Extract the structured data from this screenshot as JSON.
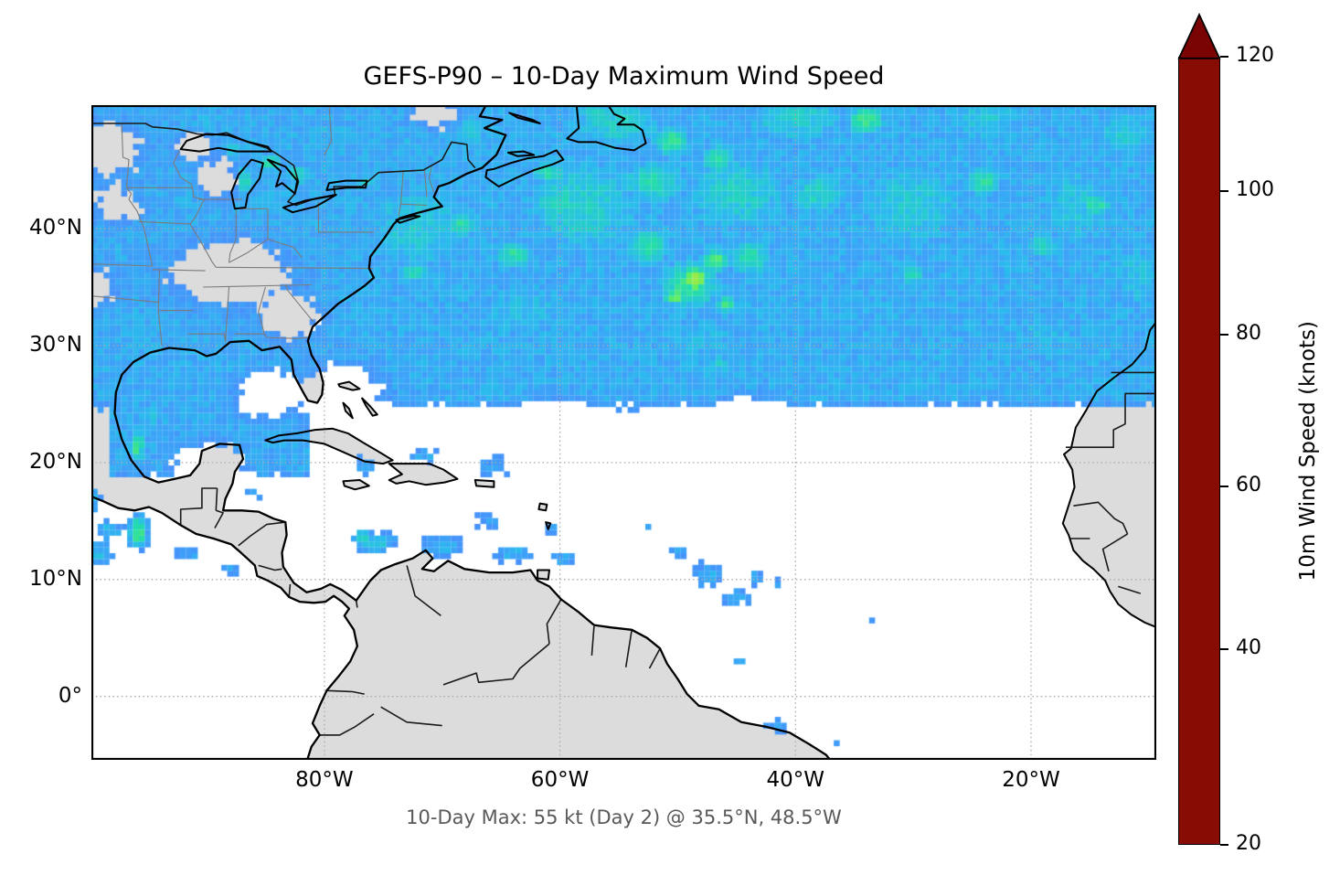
{
  "chart_data": {
    "type": "heatmap",
    "title": "GEFS-P90 – 10-Day Maximum Wind Speed",
    "annotation": "10-Day Max: 55 kt (Day 2) @ 35.5°N, 48.5°W",
    "units": "knots",
    "value_range": [
      20,
      120
    ],
    "max_point": {
      "value_kt": 55,
      "day": 2,
      "lat_deg_n": 35.5,
      "lon_deg_w": 48.5
    },
    "x_axis": {
      "ticks": [
        {
          "label": "80°W",
          "lon": -80
        },
        {
          "label": "60°W",
          "lon": -60
        },
        {
          "label": "40°W",
          "lon": -40
        },
        {
          "label": "20°W",
          "lon": -20
        }
      ],
      "range_lon": [
        -99.78,
        -9.37
      ]
    },
    "y_axis": {
      "ticks": [
        {
          "label": "40°N",
          "lat": 40
        },
        {
          "label": "30°N",
          "lat": 30
        },
        {
          "label": "20°N",
          "lat": 20
        },
        {
          "label": "10°N",
          "lat": 10
        },
        {
          "label": "0°",
          "lat": 0
        }
      ],
      "range_lat": [
        -5.35,
        50.56
      ]
    },
    "grid": "dotted",
    "colorbar": {
      "label": "10m Wind Speed (knots)",
      "extend": "max",
      "extend_color": "#7a0403",
      "ticks": [
        {
          "label": "120",
          "f": 0.0
        },
        {
          "label": "100",
          "f": 0.171
        },
        {
          "label": "80",
          "f": 0.353
        },
        {
          "label": "60",
          "f": 0.545
        },
        {
          "label": "40",
          "f": 0.752
        },
        {
          "label": "20",
          "f": 1.0
        }
      ]
    },
    "colormap": [
      {
        "v": 20,
        "c": "#4691fb",
        "f": 1.0
      },
      {
        "v": 25,
        "c": "#3ba5f7",
        "f": 0.938
      },
      {
        "v": 30,
        "c": "#29bdec",
        "f": 0.876
      },
      {
        "v": 40,
        "c": "#23dcab",
        "f": 0.752
      },
      {
        "v": 50,
        "c": "#63ee5d",
        "f": 0.648
      },
      {
        "v": 60,
        "c": "#c8e43a",
        "f": 0.545
      },
      {
        "v": 70,
        "c": "#f2d438",
        "f": 0.449
      },
      {
        "v": 80,
        "c": "#fa952c",
        "f": 0.353
      },
      {
        "v": 90,
        "c": "#ea5c14",
        "f": 0.262
      },
      {
        "v": 100,
        "c": "#c62d04",
        "f": 0.171
      },
      {
        "v": 110,
        "c": "#a41204",
        "f": 0.087
      },
      {
        "v": 120,
        "c": "#870c04",
        "f": 0.0
      }
    ],
    "field_model": {
      "comment": "approximate 10-day max wind field, knots; blobs=[lon,lat,rx,ry,value] gaussian, holes=[lon,lat,rx,ry,strength]; values below 20 kt are masked white",
      "base": {
        "atlantic": {
          "lat0": 23.2,
          "ramp": 2.2,
          "v": 26.5
        },
        "gulf": {
          "lonMin": -98.5,
          "lonMax": -81,
          "lat0": 17.4,
          "ramp": 1.8,
          "v": 26
        }
      },
      "blobs": [
        [
          -72,
          40,
          9,
          7,
          33
        ],
        [
          -58,
          42,
          9,
          7,
          35
        ],
        [
          -45,
          43,
          8,
          6,
          35
        ],
        [
          -30,
          42,
          9,
          7,
          33
        ],
        [
          -16,
          42,
          7,
          7,
          32
        ],
        [
          -63,
          33,
          8,
          5.5,
          30
        ],
        [
          -48,
          30.5,
          8,
          5.5,
          29
        ],
        [
          -33,
          30.5,
          9,
          5.5,
          28
        ],
        [
          -19,
          31,
          8,
          5.5,
          29
        ],
        [
          -11,
          36,
          5,
          6,
          31
        ],
        [
          -55,
          49,
          7,
          4,
          35
        ],
        [
          -40,
          49.5,
          8,
          4,
          34
        ],
        [
          -24,
          49.5,
          8,
          4,
          32
        ],
        [
          -68,
          48.5,
          5,
          3.5,
          31
        ],
        [
          -12,
          48,
          5,
          4,
          33
        ],
        [
          -57,
          50,
          3,
          2,
          34
        ],
        [
          -70,
          26.5,
          5,
          3,
          26
        ],
        [
          -55,
          26,
          6,
          3,
          25
        ],
        [
          -40,
          26,
          7,
          3,
          25
        ],
        [
          -25,
          26.5,
          7,
          3,
          26
        ],
        [
          -14,
          26.5,
          4,
          2.5,
          26
        ],
        [
          -48.5,
          35.7,
          1.4,
          1.7,
          56
        ],
        [
          -50.2,
          34.2,
          1.4,
          1.1,
          49
        ],
        [
          -46.8,
          37.3,
          1.8,
          1.4,
          47
        ],
        [
          -45.8,
          33.5,
          1.3,
          1.1,
          44
        ],
        [
          -49,
          35.2,
          4,
          3.2,
          42
        ],
        [
          -44,
          37.5,
          3,
          2.5,
          40
        ],
        [
          -52.5,
          38.5,
          3,
          2.5,
          40
        ],
        [
          -52,
          44,
          4.5,
          3,
          38
        ],
        [
          -60,
          42.5,
          4,
          2.8,
          37
        ],
        [
          -38,
          43,
          4,
          3,
          37
        ],
        [
          -34,
          49.3,
          2.3,
          1.9,
          44
        ],
        [
          -24,
          44,
          2.5,
          2,
          40
        ],
        [
          -14.5,
          42,
          2.2,
          1.8,
          40
        ],
        [
          -19,
          38.5,
          2,
          1.6,
          38
        ],
        [
          -30,
          36,
          1.8,
          1.4,
          37
        ],
        [
          -46.5,
          28.5,
          1.4,
          2.2,
          33
        ],
        [
          -64,
          37.8,
          2.6,
          2,
          40
        ],
        [
          -68.5,
          40.3,
          2.4,
          1.8,
          40
        ],
        [
          -72.5,
          36.3,
          2.2,
          1.3,
          38
        ],
        [
          -61,
          44.8,
          2.4,
          1.6,
          40
        ],
        [
          -50.5,
          47.5,
          2.4,
          2,
          42
        ],
        [
          -46.5,
          46,
          2.4,
          2,
          40
        ],
        [
          -86.8,
          44.2,
          0.9,
          1.7,
          43
        ],
        [
          -84.6,
          45.7,
          1.6,
          1,
          41
        ],
        [
          -82.3,
          44.6,
          1.6,
          1.2,
          39
        ],
        [
          -87.8,
          46.8,
          1.8,
          0.9,
          38
        ],
        [
          -76.3,
          43.9,
          1.4,
          0.8,
          36
        ],
        [
          -79.5,
          48.5,
          3,
          2,
          29
        ],
        [
          -73,
          47.5,
          2.5,
          2,
          28
        ],
        [
          -90,
          49,
          3,
          2,
          30
        ],
        [
          -97,
          31.5,
          2,
          2,
          26
        ],
        [
          -93.5,
          44.5,
          2.5,
          2,
          28
        ],
        [
          -92,
          25.5,
          4,
          3,
          27
        ],
        [
          -95.9,
          21.4,
          0.9,
          2.1,
          44
        ],
        [
          -94.9,
          24,
          1.8,
          2,
          32
        ],
        [
          -86.5,
          23.5,
          2.5,
          2,
          25
        ],
        [
          -84.5,
          22,
          2,
          1.3,
          25
        ],
        [
          -75.6,
          13.2,
          2.6,
          1.3,
          33
        ],
        [
          -76.8,
          13.6,
          1,
          0.8,
          38
        ],
        [
          -70,
          12.8,
          3,
          1.3,
          30
        ],
        [
          -64,
          12.3,
          3,
          1.3,
          28
        ],
        [
          -59.5,
          11.8,
          2,
          1.2,
          26
        ],
        [
          -66,
          15,
          2.5,
          1.5,
          23
        ],
        [
          -76.5,
          19.8,
          2,
          1.3,
          26
        ],
        [
          -71.5,
          20.6,
          2,
          1.2,
          27
        ],
        [
          -65.5,
          19.6,
          2.5,
          1.4,
          27
        ],
        [
          -60.5,
          14.5,
          1.4,
          1.2,
          24
        ],
        [
          -85.8,
          17.5,
          1.7,
          1.2,
          23
        ],
        [
          -49.7,
          12.4,
          1.7,
          1.1,
          26
        ],
        [
          -47.5,
          10.4,
          2.1,
          1.7,
          28
        ],
        [
          -45,
          8.4,
          1.9,
          1.4,
          26
        ],
        [
          -43.4,
          10.2,
          1.4,
          1.1,
          25
        ],
        [
          -41.6,
          9.6,
          0.9,
          0.8,
          24
        ],
        [
          -52.5,
          14.5,
          1.8,
          0.5,
          22
        ],
        [
          -33.5,
          6.5,
          0.5,
          0.5,
          23
        ],
        [
          -44.7,
          3.2,
          1.5,
          0.9,
          25
        ],
        [
          -41.6,
          -2.6,
          1.7,
          1.2,
          26
        ],
        [
          -36.4,
          -3.9,
          1.1,
          1.1,
          25
        ],
        [
          -95.8,
          14.1,
          1.1,
          1.9,
          46
        ],
        [
          -99.3,
          12.2,
          2.2,
          1.7,
          30
        ],
        [
          -98.2,
          14.2,
          1.8,
          1.4,
          29
        ],
        [
          -99.8,
          16.8,
          1.2,
          1.6,
          30
        ],
        [
          -91.7,
          12.1,
          2.3,
          0.9,
          26
        ],
        [
          -87.8,
          10.9,
          1.4,
          0.8,
          25
        ],
        [
          -99.8,
          8.4,
          1.2,
          1,
          24
        ],
        [
          -99,
          25.5,
          1.5,
          2.5,
          24
        ]
      ],
      "holes": [
        [
          -78.6,
          25.9,
          3,
          2.1,
          0.9
        ],
        [
          -84.8,
          25.9,
          2.1,
          1.7,
          0.85
        ],
        [
          -89.8,
          19.9,
          2.3,
          1.5,
          0.9
        ],
        [
          -88,
          36.3,
          4.4,
          2.4,
          0.8
        ],
        [
          -89,
          44.3,
          1.5,
          1.5,
          0.6
        ],
        [
          -91.2,
          47,
          1.6,
          1.2,
          0.55
        ],
        [
          -98.7,
          46.8,
          3,
          2.2,
          0.6
        ],
        [
          -97.6,
          42,
          2,
          1.6,
          0.5
        ],
        [
          -99.6,
          35,
          1.8,
          1.6,
          0.55
        ],
        [
          -82.8,
          32.4,
          2.4,
          1.8,
          0.55
        ],
        [
          -76.2,
          23.2,
          2.2,
          1.3,
          0.65
        ],
        [
          -60,
          24.3,
          2.6,
          1.3,
          0.45
        ],
        [
          -44,
          24.8,
          2.2,
          1.1,
          0.4
        ],
        [
          -70.5,
          49.9,
          2,
          1.3,
          0.5
        ]
      ]
    }
  },
  "style_colors": {
    "land": "#dcdcdc",
    "ocean": "#ffffff",
    "coastline": "#000000",
    "country_border": "#1a1a1a",
    "state_border": "#7b7b7b",
    "gridline": "#aaaaaa",
    "frame": "#000000",
    "subtitle_text": "#595959"
  }
}
